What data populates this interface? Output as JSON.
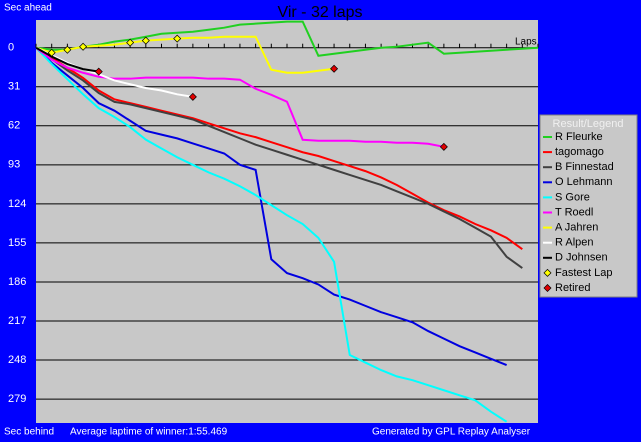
{
  "chart_data": {
    "type": "line",
    "title": "Vir - 32 laps",
    "y_top_label": "Sec ahead",
    "y_bottom_label": "Sec behind",
    "x_label": "Laps",
    "footer_left": "Average laptime of winner:1:55.469",
    "footer_right": "Generated by GPL Replay Analyser",
    "legend_title": "Result/Legend",
    "xlim": [
      0,
      32
    ],
    "xticks": [
      0,
      1,
      2,
      3,
      4,
      5,
      6,
      7,
      8,
      9,
      10,
      11,
      12,
      13,
      14,
      15,
      16,
      17,
      18,
      19,
      20,
      21,
      22,
      23,
      24,
      25,
      26,
      27,
      28,
      29,
      30,
      31,
      32
    ],
    "ylim": [
      -22,
      298
    ],
    "y_inverted": true,
    "yticks": [
      0,
      31,
      62,
      93,
      124,
      155,
      186,
      217,
      248,
      279
    ],
    "grid": true,
    "series": [
      {
        "name": "R Fleurke",
        "color": "#20d020",
        "values": [
          0,
          1.6,
          1.6,
          -0.8,
          -2.4,
          -4.8,
          -6.4,
          -8.7,
          -11.1,
          -11.9,
          -12.7,
          -14.3,
          -15.9,
          -18.3,
          -19.1,
          -19.9,
          -20.7,
          -20.7,
          6.4,
          4.8,
          3.2,
          1.6,
          0,
          -0.8,
          -2.4,
          -4,
          4.8,
          4,
          3.2,
          2.4,
          1.6,
          0.8,
          0
        ]
      },
      {
        "name": "tagomago",
        "color": "#ff0000",
        "values": [
          0,
          8,
          16,
          24,
          34,
          41,
          44,
          47,
          50,
          53,
          56,
          60,
          64,
          68,
          71,
          75,
          79,
          83,
          86,
          90,
          94,
          98,
          103,
          109,
          116,
          123,
          129,
          134,
          140,
          145,
          151,
          160
        ]
      },
      {
        "name": "B Finnestad",
        "color": "#404040",
        "values": [
          0,
          9,
          18,
          26,
          36,
          43,
          45,
          48,
          51,
          54,
          57,
          62,
          67,
          72,
          77,
          81,
          85,
          89,
          93,
          97,
          101,
          105,
          109,
          114,
          119,
          124,
          130,
          136,
          143,
          150,
          166,
          175
        ]
      },
      {
        "name": "O Lehmann",
        "color": "#0000e0",
        "values": [
          0,
          12,
          22,
          32,
          44,
          50,
          58,
          66,
          69,
          72,
          76,
          80,
          84,
          93,
          97,
          168,
          179,
          183,
          188,
          196,
          200,
          205,
          210,
          214,
          218,
          225,
          231,
          237,
          242,
          247,
          252
        ]
      },
      {
        "name": "S Gore",
        "color": "#00ffff",
        "values": [
          0,
          13,
          25,
          37,
          48,
          55,
          63,
          73,
          80,
          87,
          93,
          99,
          104,
          110,
          117,
          125,
          133,
          140,
          151,
          170,
          244,
          250,
          256,
          261,
          264,
          268,
          272,
          276,
          280,
          289,
          297
        ]
      },
      {
        "name": "T Roedl",
        "color": "#ff00ff",
        "values": [
          0,
          9.5,
          15.9,
          19.9,
          23.1,
          24.6,
          24.6,
          23.8,
          23.8,
          23.8,
          23.8,
          24.6,
          24.6,
          25.4,
          32.6,
          37.4,
          42.9,
          73.1,
          73.9,
          73.9,
          73.9,
          74.7,
          74.7,
          75.5,
          75.5,
          76.3,
          78.7
        ]
      },
      {
        "name": "A Jahren",
        "color": "#ffff00",
        "values": [
          0,
          4,
          1.6,
          -0.8,
          -1.6,
          -2.4,
          -4,
          -5.6,
          -6.4,
          -7.2,
          -7.9,
          -7.9,
          -8.7,
          -8.7,
          -8.7,
          17.5,
          19.9,
          19.9,
          18.3,
          16.7
        ]
      },
      {
        "name": "R Alpen",
        "color": "#ffffff",
        "values": [
          0,
          6,
          12,
          17,
          21,
          26,
          29,
          32,
          34,
          37,
          39
        ]
      },
      {
        "name": "D Johnsen",
        "color": "#000000",
        "values": [
          0,
          7,
          13,
          17,
          19
        ]
      }
    ],
    "markers": [
      {
        "name": "Fastest Lap",
        "color": "#ffff00",
        "x": [
          1,
          2,
          3,
          6,
          7,
          9
        ],
        "values": [
          4,
          1.6,
          -0.8,
          -4,
          -5.6,
          -7.2
        ]
      },
      {
        "name": "Retired",
        "color": "#e00000",
        "x": [
          4,
          10,
          19,
          26
        ],
        "values": [
          19,
          39,
          16.7,
          78.7
        ]
      }
    ]
  }
}
